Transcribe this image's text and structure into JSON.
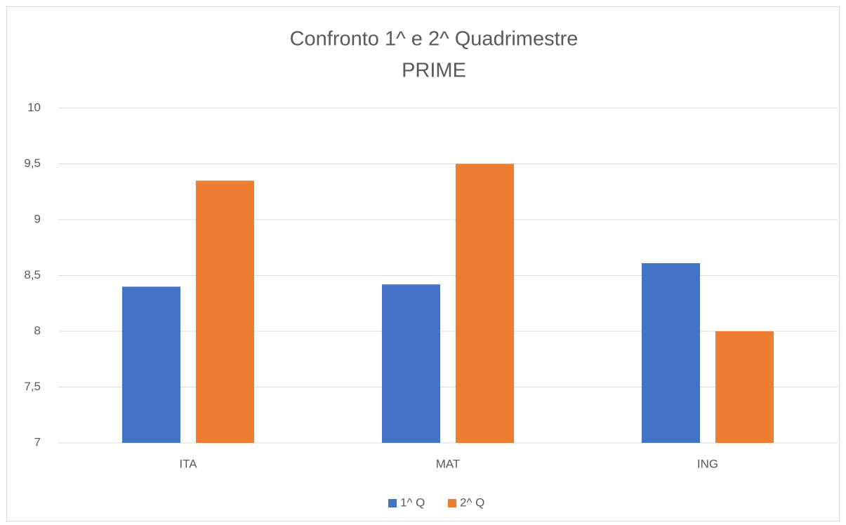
{
  "chart_data": {
    "type": "bar",
    "title": "Confronto 1^ e 2^ Quadrimestre",
    "subtitle": "PRIME",
    "categories": [
      "ITA",
      "MAT",
      "ING"
    ],
    "series": [
      {
        "name": "1^ Q",
        "color": "#4472c4",
        "values": [
          8.4,
          8.42,
          8.61
        ]
      },
      {
        "name": "2^ Q",
        "color": "#ed7d31",
        "values": [
          9.35,
          9.5,
          8.0
        ]
      }
    ],
    "ylim": [
      7,
      10
    ],
    "yticks": [
      7,
      {
        "value": 7.5,
        "label": "7,5"
      },
      8,
      {
        "value": 8.5,
        "label": "8,5"
      },
      9,
      {
        "value": 9.5,
        "label": "9,5"
      },
      10
    ],
    "grid": true,
    "legend": "bottom"
  }
}
